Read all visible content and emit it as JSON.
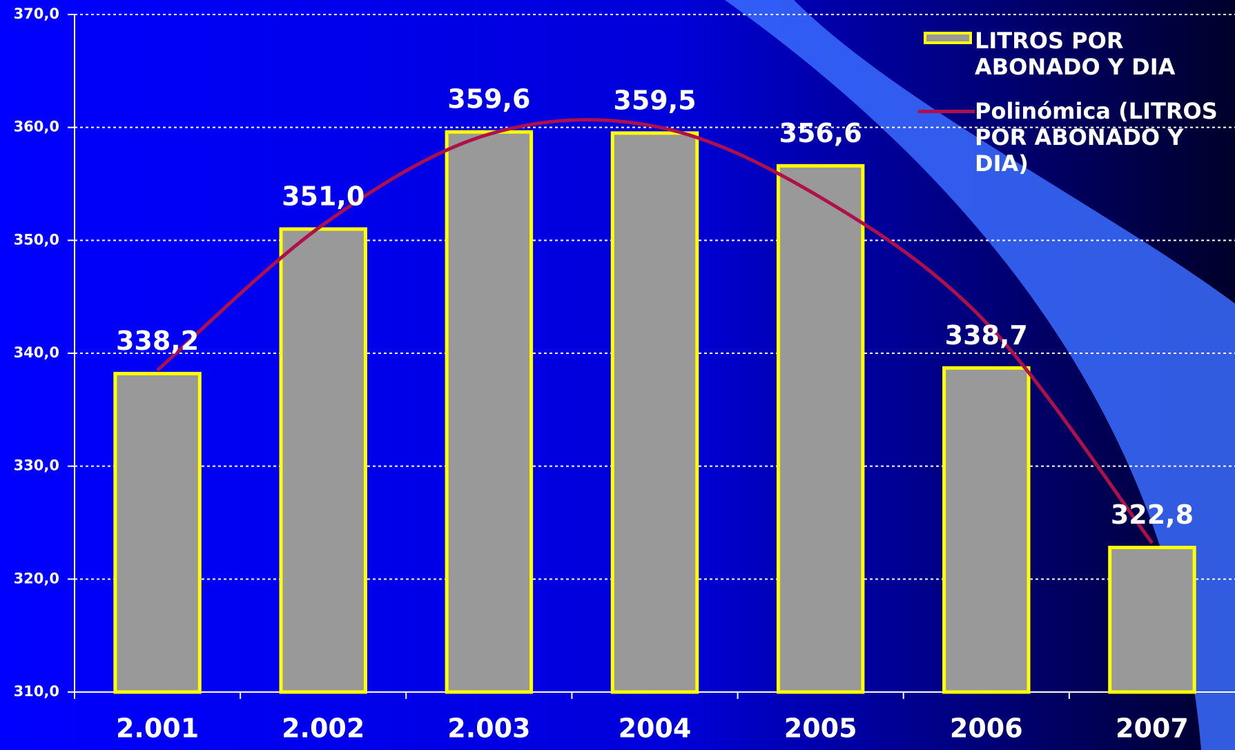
{
  "chart_data": {
    "type": "bar",
    "categories": [
      "2.001",
      "2.002",
      "2.003",
      "2004",
      "2005",
      "2006",
      "2007"
    ],
    "series": [
      {
        "name": "LITROS POR ABONADO Y DIA",
        "color": "#999999",
        "edge_color": "#ffff00",
        "values": [
          338.2,
          351.0,
          359.6,
          359.5,
          356.6,
          338.7,
          322.8
        ],
        "value_labels": [
          "338,2",
          "351,0",
          "359,6",
          "359,5",
          "356,6",
          "338,7",
          "322,8"
        ]
      },
      {
        "name": "Polinómica (LITROS POR ABONADO Y DIA)",
        "type": "line",
        "color": "#b0104a",
        "values": [
          338.5,
          351.4,
          359.4,
          360.1,
          353.8,
          342.7,
          323.2
        ]
      }
    ],
    "ylim": [
      310,
      370
    ],
    "yticks": [
      {
        "value": 310,
        "label": "310,0"
      },
      {
        "value": 320,
        "label": "320,0"
      },
      {
        "value": 330,
        "label": "330,0"
      },
      {
        "value": 340,
        "label": "340,0"
      },
      {
        "value": 350,
        "label": "350,0"
      },
      {
        "value": 360,
        "label": "360,0"
      },
      {
        "value": 370,
        "label": "370,0"
      }
    ],
    "grid": true,
    "legend": "top-right"
  }
}
